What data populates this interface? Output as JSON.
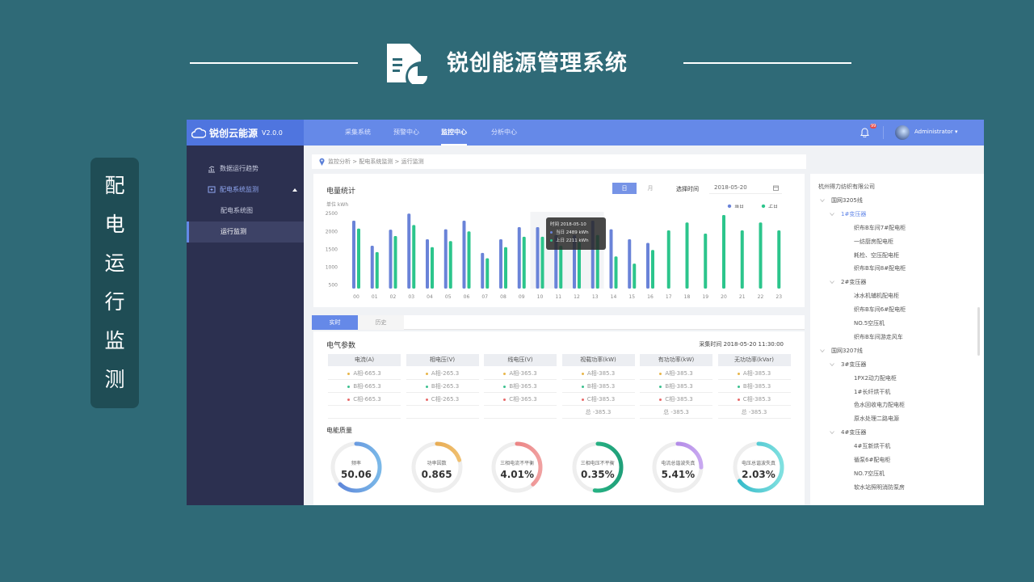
{
  "slide": {
    "title": "锐创能源管理系统",
    "side_label": [
      "配",
      "电",
      "运",
      "行",
      "监",
      "测"
    ]
  },
  "app": {
    "brand": "锐创云能源",
    "version": "V2.0.0",
    "nav": [
      "采集系统",
      "预警中心",
      "监控中心",
      "分析中心"
    ],
    "nav_active": 2,
    "user": "Administrator",
    "notification_badge": "99",
    "sidebar": [
      {
        "label": "数据运行趋势"
      },
      {
        "label": "配电系统监测"
      },
      {
        "label": "配电系统图"
      },
      {
        "label": "运行监测"
      }
    ],
    "breadcrumb": "监控分析 > 配电系统监测 > 运行监测",
    "energy": {
      "title": "电量统计",
      "tab_day": "日",
      "tab_month": "月",
      "date_label": "选择时间",
      "date_value": "2018-05-20",
      "unit_label": "单位   kWh",
      "tooltip": {
        "time": "时间  2018-05-10",
        "today": "当日  2489 kWh",
        "yesterday": "上日  2211 kWh"
      }
    },
    "tabs": [
      "实时",
      "历史"
    ],
    "params": {
      "title": "电气参数",
      "time_label": "采集时间  2018-05-20  11:30:00",
      "headers": [
        "电流(A)",
        "相电压(V)",
        "线电压(V)",
        "视载功率(kW)",
        "有功功率(kW)",
        "无功功率(kVar)"
      ],
      "rows": [
        [
          "A相-665.3",
          "A相-265.3",
          "A相-365.3",
          "A相-385.3",
          "A相-385.3",
          "A相-385.3"
        ],
        [
          "B相-665.3",
          "B相-265.3",
          "B相-365.3",
          "B相-385.3",
          "B相-385.3",
          "B相-385.3"
        ],
        [
          "C相-665.3",
          "C相-265.3",
          "C相-365.3",
          "C相-385.3",
          "C相-385.3",
          "C相-385.3"
        ],
        [
          "",
          "",
          "",
          "总 -385.3",
          "总 -385.3",
          "总 -385.3"
        ]
      ],
      "phase_colors": [
        "#e8b64a",
        "#3cc08f",
        "#e86a6a"
      ]
    },
    "quality": {
      "title": "电能质量",
      "gauges": [
        {
          "label": "频率",
          "value": "50.06",
          "fraction": 0.62,
          "color": "#5a7fd8",
          "color2": "#7ab8e8"
        },
        {
          "label": "功率因数",
          "value": "0.865",
          "fraction": 0.2,
          "color": "#e09a3a",
          "color2": "#f0c070"
        },
        {
          "label": "三相电流不平衡",
          "value": "4.01%",
          "fraction": 0.38,
          "color": "#e86a6a",
          "color2": "#f0a0a0"
        },
        {
          "label": "三相电压不平衡",
          "value": "0.35%",
          "fraction": 0.52,
          "color": "#2cbf8a",
          "color2": "#20a07a"
        },
        {
          "label": "电流总谐波失真",
          "value": "5.41%",
          "fraction": 0.25,
          "color": "#a070e0",
          "color2": "#c8a8f0"
        },
        {
          "label": "电压总谐波失真",
          "value": "2.03%",
          "fraction": 0.65,
          "color": "#30b8c8",
          "color2": "#80e0e0"
        }
      ]
    },
    "tree": [
      {
        "label": "杭州得力纺织有限公司",
        "level": 0
      },
      {
        "label": "国网3205线",
        "level": 1,
        "expand": true
      },
      {
        "label": "1#变压器",
        "level": 2,
        "expand": true,
        "active": true
      },
      {
        "label": "织布B车间7#配电柜",
        "level": 3
      },
      {
        "label": "一纺厨房配电柜",
        "level": 3
      },
      {
        "label": "耗检、空压配电柜",
        "level": 3
      },
      {
        "label": "织布B车间8#配电柜",
        "level": 3
      },
      {
        "label": "2#变压器",
        "level": 2,
        "expand": true
      },
      {
        "label": "冰水机辅机配电柜",
        "level": 3
      },
      {
        "label": "织布B车间6#配电柜",
        "level": 3
      },
      {
        "label": "NO.5空压机",
        "level": 3
      },
      {
        "label": "织布B车间游走风车",
        "level": 3
      },
      {
        "label": "国网3207线",
        "level": 1,
        "expand": true
      },
      {
        "label": "3#变压器",
        "level": 2,
        "expand": true
      },
      {
        "label": "1PX2动力配电柜",
        "level": 3
      },
      {
        "label": "1#长纤烘干机",
        "level": 3
      },
      {
        "label": "色水回收电力配电柜",
        "level": 3
      },
      {
        "label": "原水处理二路电源",
        "level": 3
      },
      {
        "label": "4#变压器",
        "level": 2,
        "expand": true
      },
      {
        "label": "4#互新烘干机",
        "level": 3
      },
      {
        "label": "循泵6#配电柜",
        "level": 3
      },
      {
        "label": "NO.7空压机",
        "level": 3
      },
      {
        "label": "软水站照明消防泵房",
        "level": 3
      }
    ]
  },
  "chart_data": {
    "type": "bar",
    "title": "电量统计",
    "ylabel": "单位 kWh",
    "ylim": [
      400,
      2550
    ],
    "yticks": [
      500,
      1000,
      1500,
      2000,
      2500
    ],
    "categories": [
      "00",
      "01",
      "02",
      "03",
      "04",
      "05",
      "06",
      "07",
      "08",
      "09",
      "10",
      "11",
      "12",
      "13",
      "14",
      "15",
      "16",
      "17",
      "18",
      "19",
      "20",
      "21",
      "22",
      "23"
    ],
    "legend_position": "top-right",
    "grid": false,
    "series": [
      {
        "name": "当日",
        "color": "#6a83d8",
        "values": [
          2300,
          1600,
          2050,
          2500,
          1780,
          2060,
          2300,
          1400,
          1780,
          2120,
          2120,
          1900,
          1900,
          2300,
          2060,
          1780,
          1680,
          null,
          null,
          null,
          null,
          null,
          null,
          null
        ]
      },
      {
        "name": "上日",
        "color": "#2cc58c",
        "values": [
          2080,
          1420,
          1870,
          2180,
          1560,
          1730,
          2000,
          1250,
          1560,
          1850,
          1850,
          1600,
          1700,
          1900,
          1300,
          1100,
          1480,
          2030,
          2250,
          1940,
          2460,
          2030,
          2250,
          2030
        ]
      }
    ]
  }
}
